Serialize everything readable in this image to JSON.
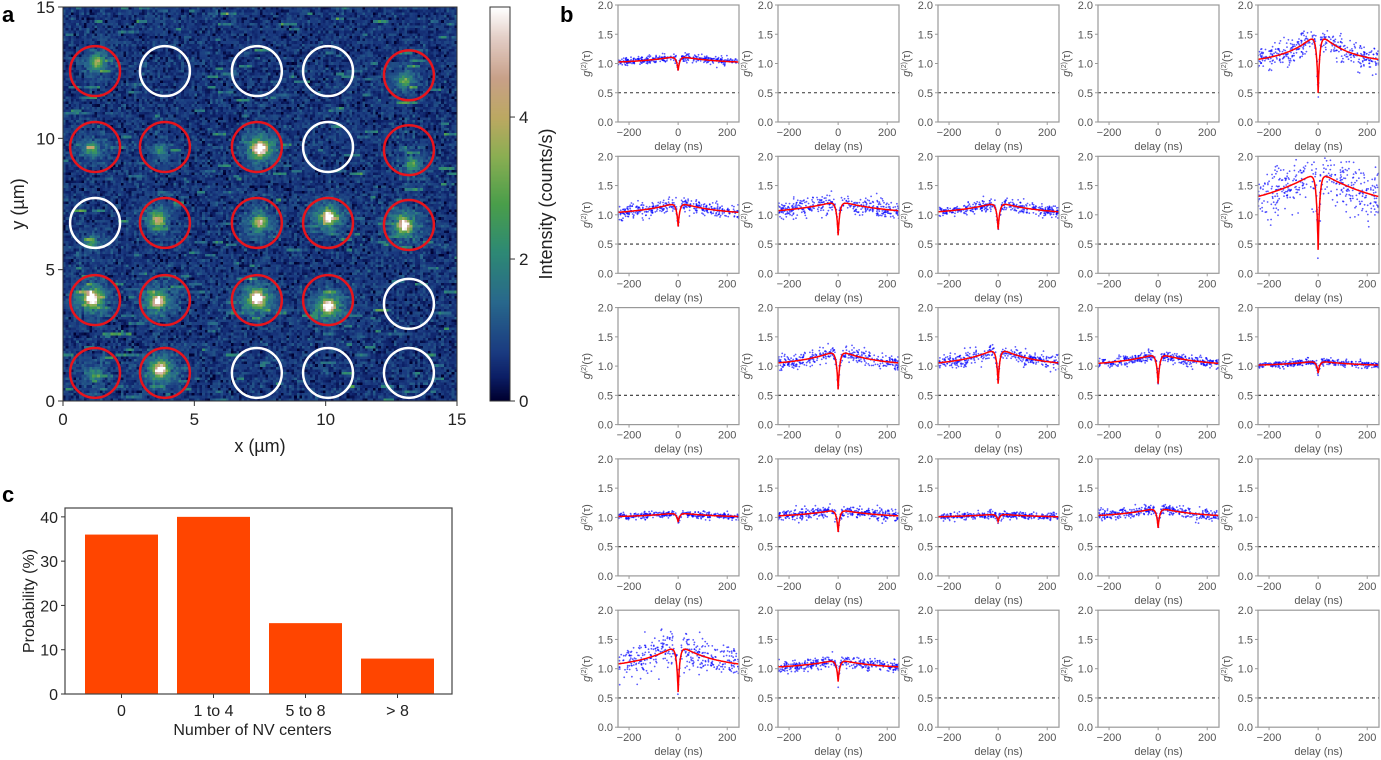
{
  "panel_labels": {
    "a": "a",
    "b": "b",
    "c": "c"
  },
  "chart_data": [
    {
      "panel": "a",
      "type": "heatmap",
      "xlabel": "x (µm)",
      "ylabel": "y (µm)",
      "xlim": [
        0,
        15
      ],
      "ylim": [
        0,
        15
      ],
      "xticks": [
        "0",
        "5",
        "10",
        "15"
      ],
      "yticks": [
        "0",
        "5",
        "10",
        "15"
      ],
      "colorbar": {
        "label": "Intensity (counts/s)",
        "range": [
          0,
          5.55
        ],
        "ticks": [
          "0",
          "2",
          "4"
        ],
        "colormap": "gist_earth"
      },
      "spots": [
        {
          "x": 1.3,
          "y": 12.9,
          "intensity": 2.6
        },
        {
          "x": 13.0,
          "y": 12.2,
          "intensity": 2.0
        },
        {
          "x": 1.1,
          "y": 9.6,
          "intensity": 2.0
        },
        {
          "x": 3.7,
          "y": 9.5,
          "intensity": 1.2
        },
        {
          "x": 7.5,
          "y": 9.6,
          "intensity": 5.6
        },
        {
          "x": 13.3,
          "y": 9.0,
          "intensity": 1.9
        },
        {
          "x": 1.1,
          "y": 6.0,
          "intensity": 1.4
        },
        {
          "x": 3.6,
          "y": 6.9,
          "intensity": 3.2
        },
        {
          "x": 7.5,
          "y": 6.8,
          "intensity": 3.2
        },
        {
          "x": 10.1,
          "y": 7.0,
          "intensity": 5.0
        },
        {
          "x": 13.0,
          "y": 6.7,
          "intensity": 5.0
        },
        {
          "x": 1.1,
          "y": 3.9,
          "intensity": 6.0
        },
        {
          "x": 3.6,
          "y": 3.8,
          "intensity": 4.6
        },
        {
          "x": 7.4,
          "y": 3.9,
          "intensity": 6.0
        },
        {
          "x": 10.1,
          "y": 3.6,
          "intensity": 5.5
        },
        {
          "x": 1.2,
          "y": 1.0,
          "intensity": 1.5
        },
        {
          "x": 3.7,
          "y": 1.2,
          "intensity": 5.0
        }
      ],
      "markers": [
        {
          "x": 1.22,
          "y": 12.56,
          "color": "#e8141c"
        },
        {
          "x": 3.88,
          "y": 12.56,
          "color": "#ffffff"
        },
        {
          "x": 7.38,
          "y": 12.56,
          "color": "#ffffff"
        },
        {
          "x": 10.09,
          "y": 12.56,
          "color": "#ffffff"
        },
        {
          "x": 13.17,
          "y": 12.4,
          "color": "#e8141c"
        },
        {
          "x": 1.22,
          "y": 9.67,
          "color": "#e8141c"
        },
        {
          "x": 3.88,
          "y": 9.67,
          "color": "#e8141c"
        },
        {
          "x": 7.38,
          "y": 9.67,
          "color": "#e8141c"
        },
        {
          "x": 10.09,
          "y": 9.67,
          "color": "#ffffff"
        },
        {
          "x": 13.17,
          "y": 9.55,
          "color": "#e8141c"
        },
        {
          "x": 1.22,
          "y": 6.78,
          "color": "#ffffff"
        },
        {
          "x": 3.88,
          "y": 6.78,
          "color": "#e8141c"
        },
        {
          "x": 7.38,
          "y": 6.78,
          "color": "#e8141c"
        },
        {
          "x": 10.09,
          "y": 6.78,
          "color": "#e8141c"
        },
        {
          "x": 13.17,
          "y": 6.7,
          "color": "#e8141c"
        },
        {
          "x": 1.22,
          "y": 3.84,
          "color": "#e8141c"
        },
        {
          "x": 3.88,
          "y": 3.84,
          "color": "#e8141c"
        },
        {
          "x": 7.38,
          "y": 3.84,
          "color": "#e8141c"
        },
        {
          "x": 10.09,
          "y": 3.84,
          "color": "#e8141c"
        },
        {
          "x": 13.17,
          "y": 3.7,
          "color": "#ffffff"
        },
        {
          "x": 1.22,
          "y": 1.07,
          "color": "#e8141c"
        },
        {
          "x": 3.88,
          "y": 1.07,
          "color": "#e8141c"
        },
        {
          "x": 7.38,
          "y": 1.07,
          "color": "#ffffff"
        },
        {
          "x": 10.09,
          "y": 1.07,
          "color": "#ffffff"
        },
        {
          "x": 13.17,
          "y": 1.07,
          "color": "#ffffff"
        }
      ]
    },
    {
      "panel": "b",
      "type": "scatter",
      "xlabel": "delay (ns)",
      "ylabel": {
        "base": "g",
        "sup": "(2)",
        "tail": "(τ)"
      },
      "xlim": [
        -245,
        248
      ],
      "ylim": [
        0,
        2
      ],
      "xticks": [
        "−200",
        "0",
        "200"
      ],
      "yticks": [
        "0.0",
        "0.5",
        "1.0",
        "1.5",
        "2.0"
      ],
      "threshold_line": 0.5,
      "colors": {
        "points": "#0000ff",
        "fit": "#ff0000",
        "threshold": "#333333"
      },
      "plots": [
        {
          "row": 1,
          "col": 1,
          "has_data": true,
          "g2_zero": 0.88,
          "bunching": 0.13,
          "bunching_decay_ns": 150,
          "noise": 0.035
        },
        {
          "row": 1,
          "col": 2,
          "has_data": false
        },
        {
          "row": 1,
          "col": 3,
          "has_data": false
        },
        {
          "row": 1,
          "col": 4,
          "has_data": false
        },
        {
          "row": 1,
          "col": 5,
          "has_data": true,
          "g2_zero": 0.5,
          "bunching": 0.55,
          "bunching_decay_ns": 120,
          "noise": 0.1
        },
        {
          "row": 2,
          "col": 1,
          "has_data": true,
          "g2_zero": 0.8,
          "bunching": 0.22,
          "bunching_decay_ns": 150,
          "noise": 0.06
        },
        {
          "row": 2,
          "col": 2,
          "has_data": true,
          "g2_zero": 0.65,
          "bunching": 0.24,
          "bunching_decay_ns": 200,
          "noise": 0.08
        },
        {
          "row": 2,
          "col": 3,
          "has_data": true,
          "g2_zero": 0.75,
          "bunching": 0.22,
          "bunching_decay_ns": 170,
          "noise": 0.05
        },
        {
          "row": 2,
          "col": 4,
          "has_data": false
        },
        {
          "row": 2,
          "col": 5,
          "has_data": true,
          "g2_zero": 0.4,
          "bunching": 0.75,
          "bunching_decay_ns": 280,
          "noise": 0.22
        },
        {
          "row": 3,
          "col": 1,
          "has_data": false
        },
        {
          "row": 3,
          "col": 2,
          "has_data": true,
          "g2_zero": 0.6,
          "bunching": 0.28,
          "bunching_decay_ns": 150,
          "noise": 0.06
        },
        {
          "row": 3,
          "col": 3,
          "has_data": true,
          "g2_zero": 0.7,
          "bunching": 0.32,
          "bunching_decay_ns": 140,
          "noise": 0.06
        },
        {
          "row": 3,
          "col": 4,
          "has_data": true,
          "g2_zero": 0.7,
          "bunching": 0.22,
          "bunching_decay_ns": 160,
          "noise": 0.05
        },
        {
          "row": 3,
          "col": 5,
          "has_data": true,
          "g2_zero": 0.88,
          "bunching": 0.09,
          "bunching_decay_ns": 150,
          "noise": 0.03
        },
        {
          "row": 4,
          "col": 1,
          "has_data": true,
          "g2_zero": 0.92,
          "bunching": 0.08,
          "bunching_decay_ns": 150,
          "noise": 0.03
        },
        {
          "row": 4,
          "col": 2,
          "has_data": true,
          "g2_zero": 0.75,
          "bunching": 0.14,
          "bunching_decay_ns": 150,
          "noise": 0.05
        },
        {
          "row": 4,
          "col": 3,
          "has_data": true,
          "g2_zero": 0.93,
          "bunching": 0.06,
          "bunching_decay_ns": 150,
          "noise": 0.03
        },
        {
          "row": 4,
          "col": 4,
          "has_data": true,
          "g2_zero": 0.82,
          "bunching": 0.17,
          "bunching_decay_ns": 150,
          "noise": 0.05
        },
        {
          "row": 4,
          "col": 5,
          "has_data": false
        },
        {
          "row": 5,
          "col": 1,
          "has_data": true,
          "g2_zero": 0.6,
          "bunching": 0.42,
          "bunching_decay_ns": 150,
          "noise": 0.15
        },
        {
          "row": 5,
          "col": 2,
          "has_data": true,
          "g2_zero": 0.78,
          "bunching": 0.16,
          "bunching_decay_ns": 150,
          "noise": 0.05
        },
        {
          "row": 5,
          "col": 3,
          "has_data": false
        },
        {
          "row": 5,
          "col": 4,
          "has_data": false
        },
        {
          "row": 5,
          "col": 5,
          "has_data": false
        }
      ]
    },
    {
      "panel": "c",
      "type": "bar",
      "categories": [
        "0",
        "1 to 4",
        "5 to 8",
        "> 8"
      ],
      "values": [
        36,
        40,
        16,
        8
      ],
      "xlabel": "Number of NV centers",
      "ylabel": "Probability (%)",
      "ylim": [
        0,
        42
      ],
      "yticks": [
        "0",
        "10",
        "20",
        "30",
        "40"
      ],
      "color": "#ff4500"
    }
  ]
}
